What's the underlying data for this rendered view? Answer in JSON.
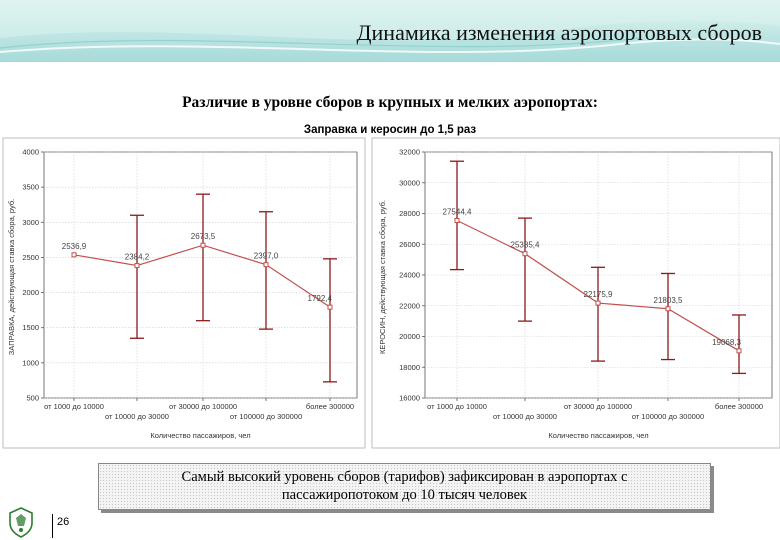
{
  "header": {
    "title": "Динамика изменения аэропортовых сборов"
  },
  "subtitle": "Различие в уровне сборов в крупных и мелких аэропортах:",
  "caption": "Заправка и керосин до 1,5 раз",
  "colors": {
    "series": "#c0504d",
    "errorbar": "#8b1a1a",
    "header_band": "#bfe6e4",
    "emblem": "#2e7d32"
  },
  "chart_data": [
    {
      "type": "line",
      "ylabel": "ЗАПРАВКА, действующая ставка сбора, руб.",
      "xlabel": "Количество пассажиров, чел",
      "ylim": [
        500,
        4000
      ],
      "yticks": [
        "500",
        "1000",
        "1500",
        "2000",
        "2500",
        "3000",
        "3500",
        "4000"
      ],
      "categories": [
        "от 1000 до 10000",
        "от 10000 до 30000",
        "от 30000 до 100000",
        "от 100000 до 300000",
        "более 300000"
      ],
      "values": [
        2536.9,
        2384.2,
        2673.5,
        2397.0,
        1792.4
      ],
      "value_labels": [
        "2536,9",
        "2384,2",
        "2673,5",
        "2397,0",
        "1792,4"
      ],
      "error_low": [
        null,
        1350,
        1600,
        1480,
        730
      ],
      "error_high": [
        null,
        3100,
        3400,
        3150,
        2480
      ],
      "grid": true
    },
    {
      "type": "line",
      "ylabel": "КЕРОСИН, действующая ставка сбора, руб.",
      "xlabel": "Количество пассажиров, чел",
      "ylim": [
        16000,
        32000
      ],
      "yticks": [
        "16000",
        "18000",
        "20000",
        "22000",
        "24000",
        "26000",
        "28000",
        "30000",
        "32000"
      ],
      "categories": [
        "от 1000 до 10000",
        "от 10000 до 30000",
        "от 30000 до 100000",
        "от 100000 до 300000",
        "более 300000"
      ],
      "values": [
        27544.4,
        25385.4,
        22175.9,
        21803.5,
        19068.3
      ],
      "value_labels": [
        "27544,4",
        "25385,4",
        "22175,9",
        "21803,5",
        "19068,3"
      ],
      "error_low": [
        24350,
        21000,
        18400,
        18500,
        17600
      ],
      "error_high": [
        31400,
        27700,
        24500,
        24100,
        21400
      ],
      "grid": true
    }
  ],
  "callout": {
    "line1": "Самый высокий уровень сборов (тарифов) зафиксирован в аэропортах с",
    "line2": "пассажиропотоком до 10 тысяч человек"
  },
  "footer": {
    "page_number": "26"
  }
}
